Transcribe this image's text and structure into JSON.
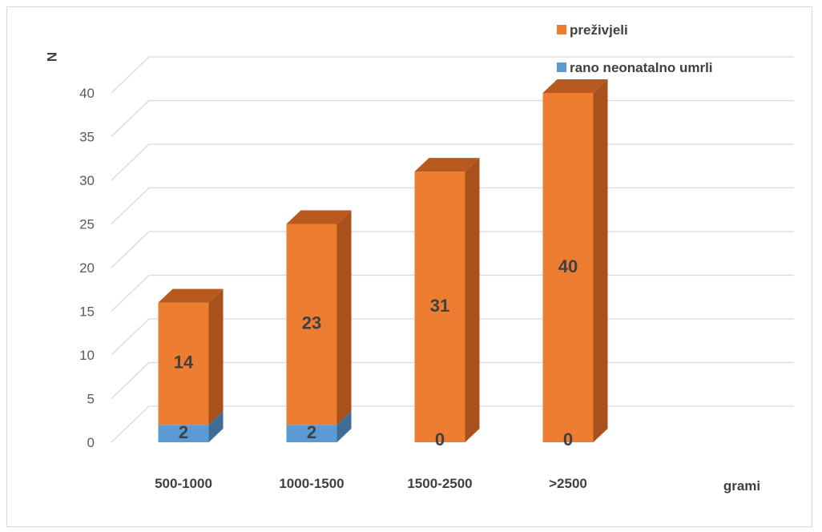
{
  "chart_data": {
    "type": "bar",
    "stacked": true,
    "three_d": true,
    "categories": [
      "500-1000",
      "1000-1500",
      "1500-2500",
      ">2500"
    ],
    "series": [
      {
        "name": "rano neonatalno umrli",
        "values": [
          2,
          2,
          0,
          0
        ],
        "color": "#5b9bd5",
        "side_color": "#3f6d97",
        "top_color": "#4a86bd"
      },
      {
        "name": "preživjeli",
        "values": [
          14,
          23,
          31,
          40
        ],
        "color": "#ed7d31",
        "side_color": "#a9511c",
        "top_color": "#b85a20"
      }
    ],
    "xlabel": "grami",
    "ylabel": "N",
    "ylim": [
      0,
      40
    ],
    "yticks": [
      0,
      5,
      10,
      15,
      20,
      25,
      30,
      35,
      40
    ],
    "grid": true,
    "legend": "top-right"
  }
}
